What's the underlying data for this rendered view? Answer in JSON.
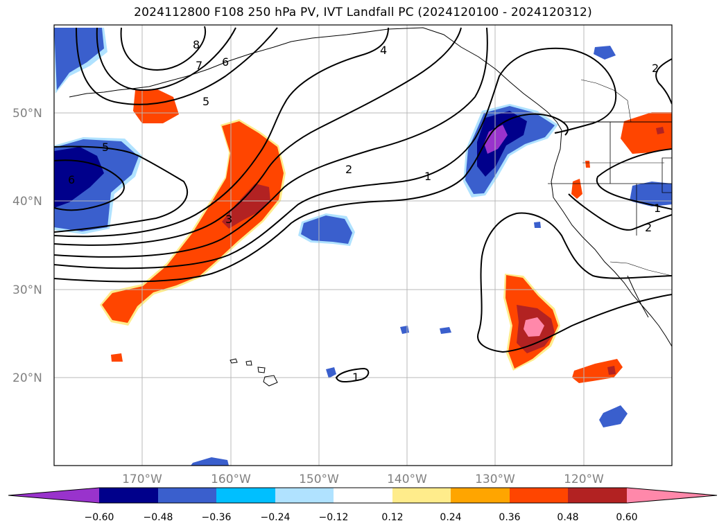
{
  "title": "2024112800 F108 250 hPa PV, IVT Landfall PC (2024120100 - 2024120312)",
  "lat_labels": [
    "50°N",
    "40°N",
    "30°N",
    "20°N"
  ],
  "lon_labels": [
    "170°W",
    "160°W",
    "150°W",
    "140°W",
    "130°W",
    "120°W"
  ],
  "contour_labels": [
    "8",
    "7",
    "6",
    "5",
    "4",
    "5",
    "6",
    "3",
    "2",
    "1",
    "2",
    "1",
    "2",
    "1"
  ],
  "colorbar": {
    "levels": [
      "−0.60",
      "−0.48",
      "−0.36",
      "−0.24",
      "−0.12",
      "0.12",
      "0.24",
      "0.36",
      "0.48",
      "0.60"
    ],
    "colors": [
      "#9933cc",
      "#00008b",
      "#3a5fcd",
      "#00bfff",
      "#b0e2ff",
      "#ffffff",
      "#ffec8b",
      "#ffa500",
      "#ff4500",
      "#b22222",
      "#ff88aa"
    ]
  }
}
